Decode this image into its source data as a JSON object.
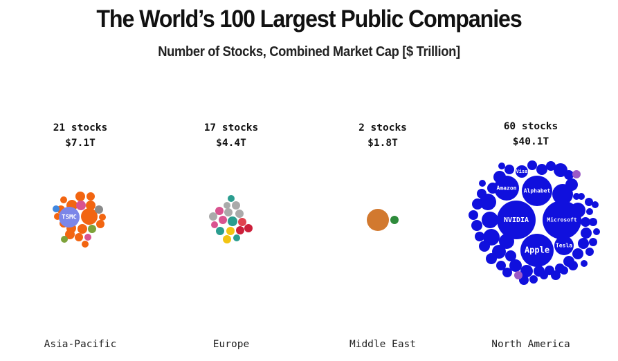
{
  "header": {
    "title": "The World’s 100 Largest Public Companies",
    "subtitle": "Number of Stocks, Combined Market Cap [$ Trillion]"
  },
  "chart_data": {
    "type": "packed-bubble",
    "title": "The World’s 100 Largest Public Companies",
    "subtitle": "Number of Stocks, Combined Market Cap [$ Trillion]",
    "regions": [
      {
        "name": "Asia-Pacific",
        "stocks_label": "21 stocks",
        "cap_label": "$7.1T",
        "stocks": 21,
        "market_cap_trillion": 7.1,
        "labeled_companies": [
          "TSMC"
        ]
      },
      {
        "name": "Europe",
        "stocks_label": "17 stocks",
        "cap_label": "$4.4T",
        "stocks": 17,
        "market_cap_trillion": 4.4,
        "labeled_companies": []
      },
      {
        "name": "Middle East",
        "stocks_label": "2 stocks",
        "cap_label": "$1.8T",
        "stocks": 2,
        "market_cap_trillion": 1.8,
        "labeled_companies": []
      },
      {
        "name": "North America",
        "stocks_label": "60 stocks",
        "cap_label": "$40.1T",
        "stocks": 60,
        "market_cap_trillion": 40.1,
        "labeled_companies": [
          "NVIDIA",
          "Microsoft",
          "Apple",
          "Amazon",
          "Alphabet",
          "Tesla",
          "Visa"
        ]
      }
    ],
    "colors": {
      "north_america": "#1010dd",
      "north_america_accent": "#9b59c6",
      "tsmc": "#7b86e8",
      "asia_orange": "#f26511",
      "middle_east_large": "#d2792f",
      "middle_east_small": "#2e8b3b"
    }
  }
}
